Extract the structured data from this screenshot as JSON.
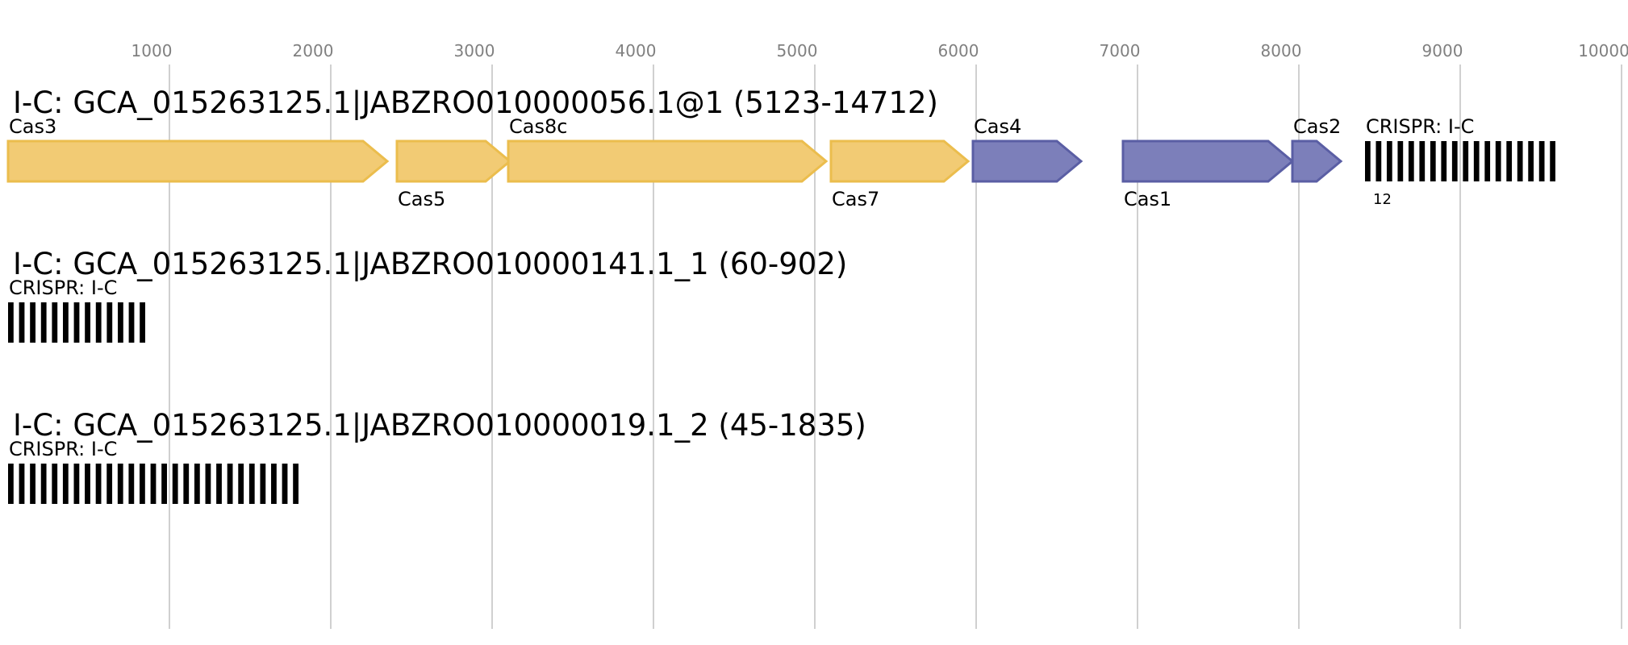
{
  "axis": {
    "ticks": [
      {
        "value": 1000,
        "label": "1000"
      },
      {
        "value": 2000,
        "label": "2000"
      },
      {
        "value": 3000,
        "label": "3000"
      },
      {
        "value": 4000,
        "label": "4000"
      },
      {
        "value": 5000,
        "label": "5000"
      },
      {
        "value": 6000,
        "label": "6000"
      },
      {
        "value": 7000,
        "label": "7000"
      },
      {
        "value": 8000,
        "label": "8000"
      },
      {
        "value": 9000,
        "label": "9000"
      },
      {
        "value": 10000,
        "label": "10000"
      }
    ]
  },
  "colors": {
    "yellow_fill": "#f2cb74",
    "yellow_stroke": "#ebbd4d",
    "blue_fill": "#7c7fba",
    "blue_stroke": "#5a5ea4",
    "grid": "#c0c0c0",
    "crispr": "#000000"
  },
  "tracks": [
    {
      "title": "I-C: GCA_015263125.1|JABZRO010000056.1@1 (5123-14712)",
      "genes": [
        {
          "name": "Cas3",
          "start": 0,
          "end": 2350,
          "color": "yellow",
          "label_pos": "above"
        },
        {
          "name": "Cas5",
          "start": 2410,
          "end": 3110,
          "color": "yellow",
          "label_pos": "below"
        },
        {
          "name": "Cas8c",
          "start": 3100,
          "end": 5070,
          "color": "yellow",
          "label_pos": "above"
        },
        {
          "name": "Cas7",
          "start": 5100,
          "end": 5950,
          "color": "yellow",
          "label_pos": "below"
        },
        {
          "name": "Cas4",
          "start": 5980,
          "end": 6650,
          "color": "blue",
          "label_pos": "above"
        },
        {
          "name": "Cas1",
          "start": 6910,
          "end": 7960,
          "color": "blue",
          "label_pos": "below"
        },
        {
          "name": "Cas2",
          "start": 7960,
          "end": 8260,
          "color": "blue",
          "label_pos": "above"
        }
      ],
      "crispr": {
        "label": "CRISPR: I-C",
        "start": 8410,
        "end": 9590,
        "repeats": 18,
        "count_label": "12"
      }
    },
    {
      "title": "I-C: GCA_015263125.1|JABZRO010000141.1_1 (60-902)",
      "genes": [],
      "crispr": {
        "label": "CRISPR: I-C",
        "start": 0,
        "end": 850,
        "repeats": 13,
        "count_label": ""
      }
    },
    {
      "title": "I-C: GCA_015263125.1|JABZRO010000019.1_2 (45-1835)",
      "genes": [],
      "crispr": {
        "label": "CRISPR: I-C",
        "start": 0,
        "end": 1800,
        "repeats": 27,
        "count_label": ""
      }
    }
  ]
}
